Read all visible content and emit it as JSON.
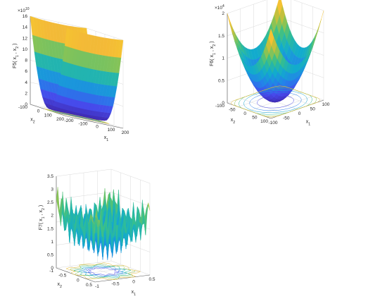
{
  "chart_data": [
    {
      "type": "surface",
      "function": "F5",
      "zlabel": "F5( x_1 , x_2 )",
      "xlabel": "x_1",
      "ylabel": "x_2",
      "exponent": "×10^10",
      "xlim": [
        -200,
        200
      ],
      "ylim": [
        -200,
        200
      ],
      "zlim": [
        0,
        16
      ],
      "xticks": [
        "-200",
        "-100",
        "0",
        "100",
        "200"
      ],
      "yticks": [
        "-100",
        "0",
        "100",
        "200"
      ],
      "zticks": [
        "0",
        "2",
        "4",
        "6",
        "8",
        "10",
        "12",
        "14",
        "16"
      ],
      "contour": true,
      "grid": true,
      "colormap": "parula"
    },
    {
      "type": "surface",
      "function": "F6",
      "zlabel": "F6( x_1 , x_2 )",
      "xlabel": "x_1",
      "ylabel": "x_2",
      "exponent": "×10^4",
      "xlim": [
        -100,
        100
      ],
      "ylim": [
        -100,
        100
      ],
      "zlim": [
        0,
        2
      ],
      "xticks": [
        "-100",
        "-50",
        "0",
        "50",
        "100"
      ],
      "yticks": [
        "-100",
        "-50",
        "0",
        "50",
        "100"
      ],
      "zticks": [
        "0",
        "0.5",
        "1",
        "1.5",
        "2"
      ],
      "contour": true,
      "grid": true,
      "colormap": "parula"
    },
    {
      "type": "surface",
      "function": "F7",
      "zlabel": "F7( x_1 , x_2 )",
      "xlabel": "x_1",
      "ylabel": "x_2",
      "exponent": "",
      "xlim": [
        -1,
        1
      ],
      "ylim": [
        -1,
        1
      ],
      "zlim": [
        0,
        3.5
      ],
      "xticks": [
        "-1",
        "-0.5",
        "0",
        "0.5"
      ],
      "yticks": [
        "-1",
        "-0.5",
        "0",
        "0.5"
      ],
      "zticks": [
        "0",
        "0.5",
        "1",
        "1.5",
        "2",
        "2.5",
        "3",
        "3.5"
      ],
      "contour": true,
      "grid": true,
      "colormap": "parula"
    }
  ]
}
